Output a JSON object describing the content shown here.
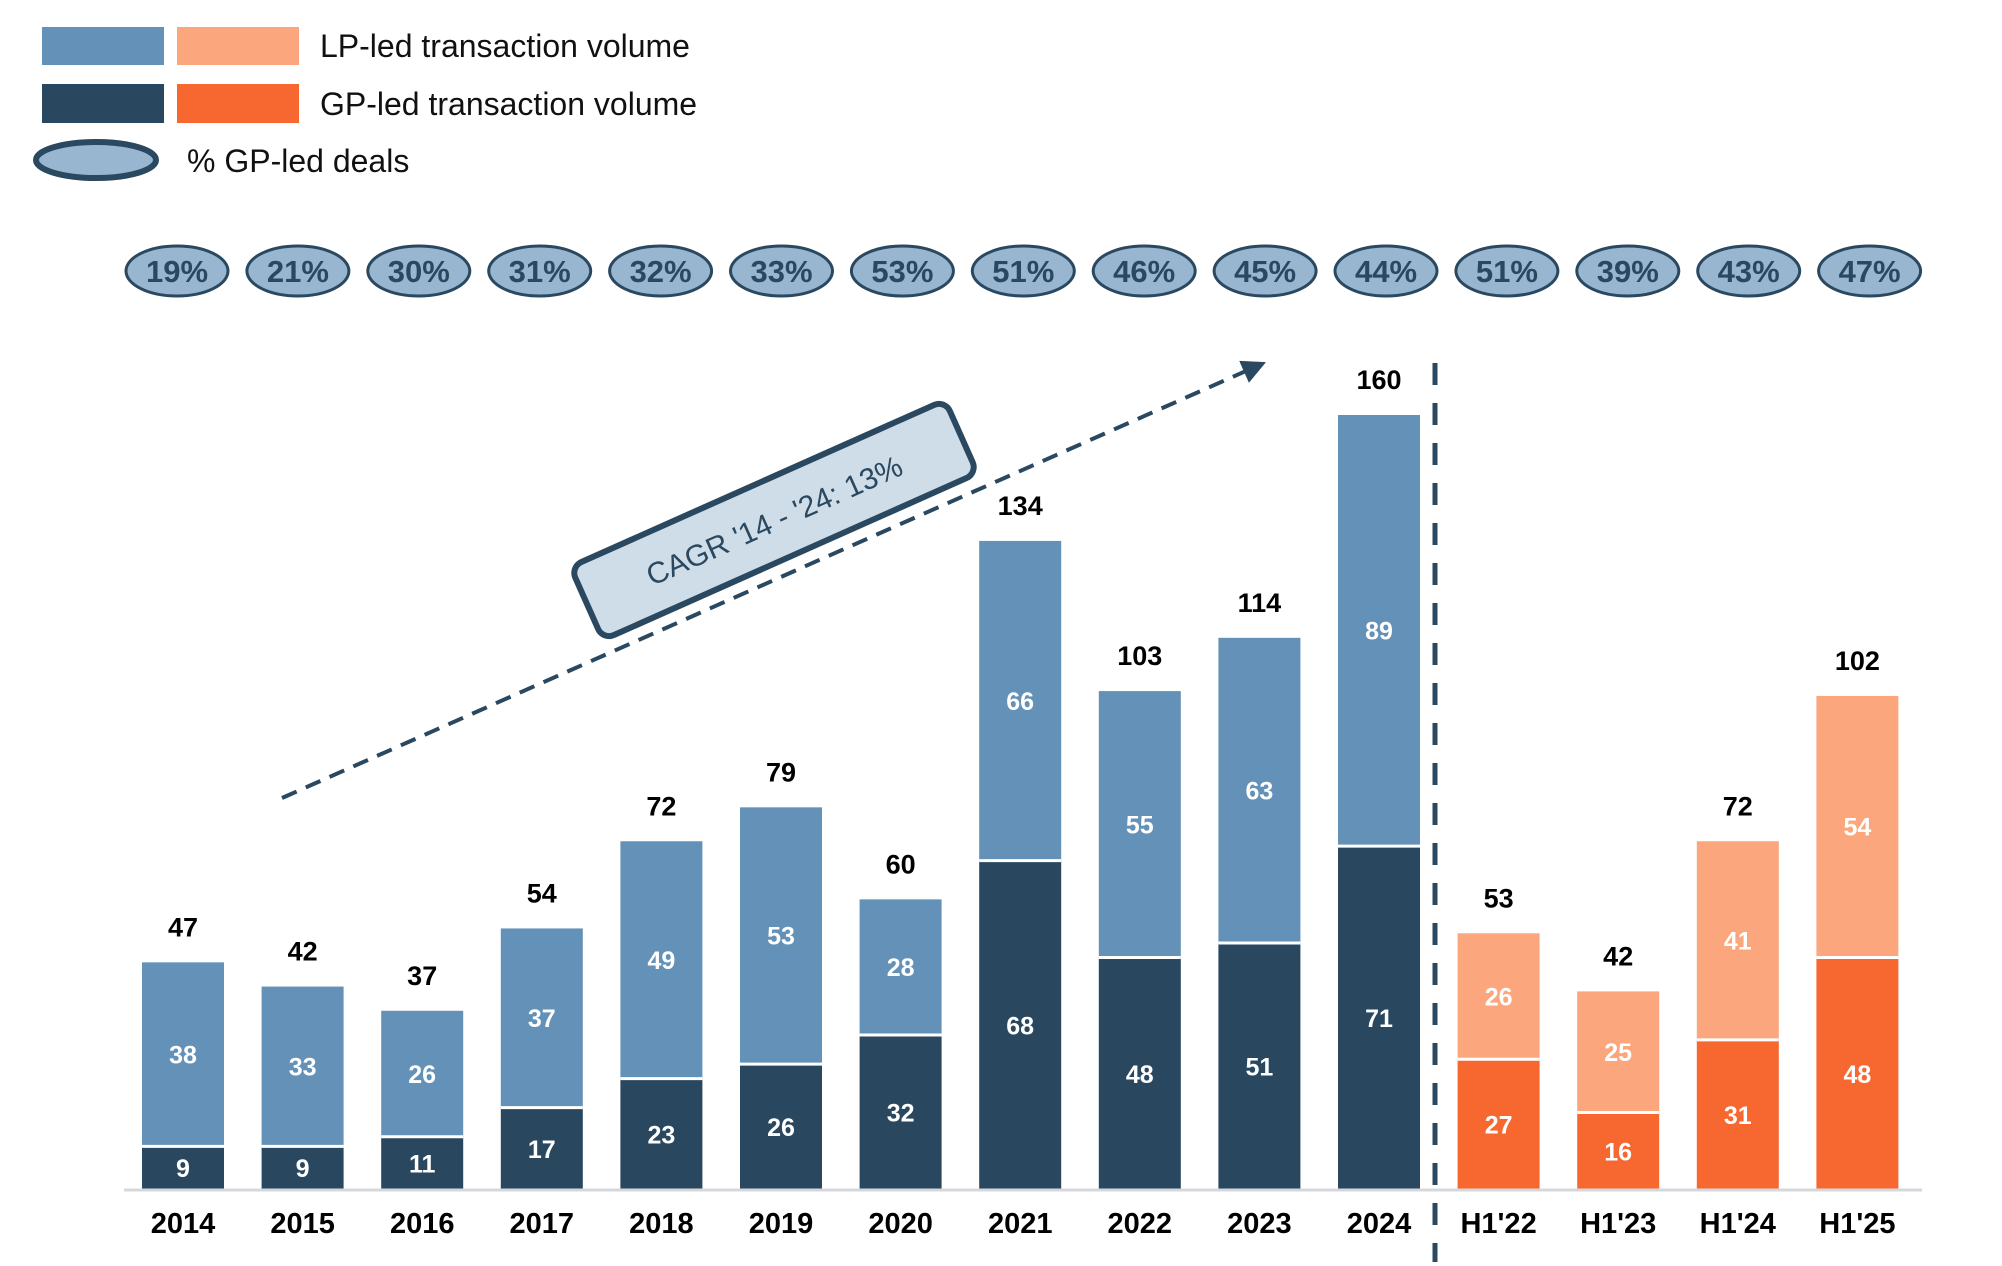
{
  "chart_data": {
    "type": "bar",
    "stacked": true,
    "title": "",
    "xlabel": "",
    "ylabel": "",
    "ylim": [
      0,
      160
    ],
    "grid": false,
    "legend_position": "top-left",
    "categories": [
      "2014",
      "2015",
      "2016",
      "2017",
      "2018",
      "2019",
      "2020",
      "2021",
      "2022",
      "2023",
      "2024",
      "H1'22",
      "H1'23",
      "H1'24",
      "H1'25"
    ],
    "series": [
      {
        "name": "GP-led transaction volume",
        "values": [
          9,
          9,
          11,
          17,
          23,
          26,
          32,
          68,
          48,
          51,
          71,
          27,
          16,
          31,
          48
        ]
      },
      {
        "name": "LP-led transaction volume",
        "values": [
          38,
          33,
          26,
          37,
          49,
          53,
          28,
          66,
          55,
          63,
          89,
          26,
          25,
          41,
          54
        ]
      }
    ],
    "totals": [
      47,
      42,
      37,
      54,
      72,
      79,
      60,
      134,
      103,
      114,
      160,
      53,
      42,
      72,
      102
    ],
    "gp_led_share_pct": [
      "19%",
      "21%",
      "30%",
      "31%",
      "32%",
      "33%",
      "53%",
      "51%",
      "46%",
      "45%",
      "44%",
      "51%",
      "39%",
      "43%",
      "47%"
    ],
    "groups": [
      {
        "name": "annual",
        "categories": [
          "2014",
          "2015",
          "2016",
          "2017",
          "2018",
          "2019",
          "2020",
          "2021",
          "2022",
          "2023",
          "2024"
        ]
      },
      {
        "name": "half-year",
        "categories": [
          "H1'22",
          "H1'23",
          "H1'24",
          "H1'25"
        ]
      }
    ],
    "annotations": [
      {
        "type": "trend-arrow",
        "text": "CAGR '14 - '24: 13%",
        "from": "2014",
        "to": "2024"
      },
      {
        "type": "divider",
        "between": [
          "2024",
          "H1'22"
        ]
      }
    ],
    "legend": [
      {
        "label": "LP-led transaction volume",
        "swatches": [
          "#6391b7",
          "#fba67c"
        ]
      },
      {
        "label": "GP-led transaction volume",
        "swatches": [
          "#29475f",
          "#f76831"
        ]
      },
      {
        "label": "% GP-led deals",
        "marker": "ellipse"
      }
    ]
  },
  "colors": {
    "annual_lp": "#6391b7",
    "annual_gp": "#29475f",
    "half_lp": "#fba67c",
    "half_gp": "#f76831",
    "ellipse_fill": "#98b6cf",
    "ellipse_stroke": "#2a4860",
    "cagr_fill": "#cfdde9",
    "axis": "#d4d8dc"
  }
}
